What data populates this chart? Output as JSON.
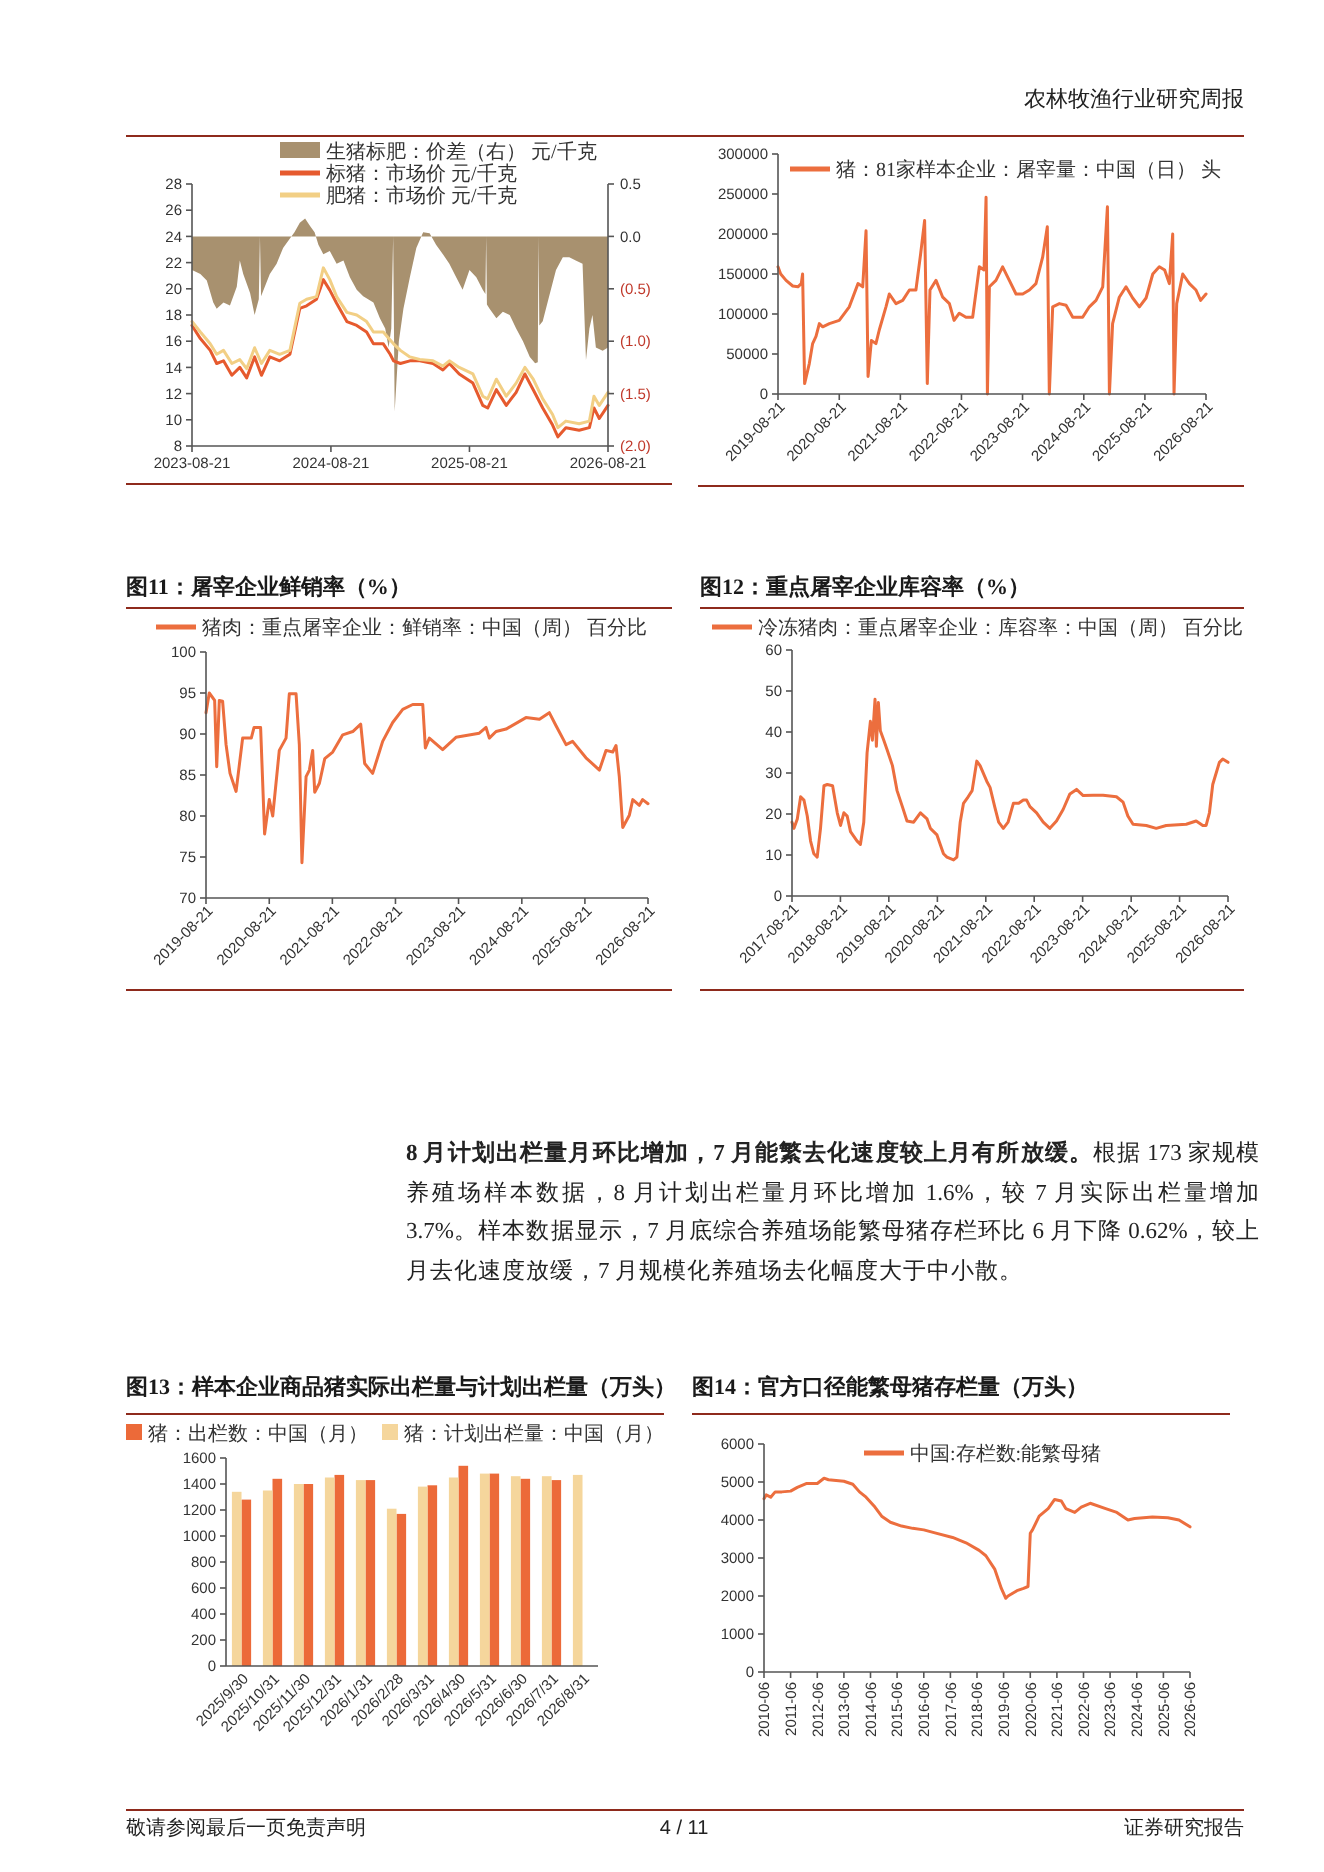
{
  "chart_data": [
    {
      "type": "other",
      "annotations": [
        "农林牧渔行业研究周报"
      ]
    },
    {
      "type": "line",
      "legend": "top",
      "xlim": [
        "2023-08-21",
        "2026-08-21"
      ],
      "xticks": [
        "2023-08-21",
        "2024-08-21",
        "2025-08-21",
        "2026-08-21"
      ],
      "ylim": [
        8,
        28
      ],
      "yticks": [
        8,
        10,
        12,
        14,
        16,
        18,
        20,
        22,
        24,
        26,
        28
      ],
      "y2lim": [
        -2,
        0.5
      ],
      "y2ticks": [
        0.5,
        {
          "value": 0,
          "label": "0.0"
        },
        {
          "value": -0.5,
          "label": "(0.5)"
        },
        {
          "value": -1,
          "label": "(1.0)"
        },
        {
          "value": -1.5,
          "label": "(1.5)"
        },
        {
          "value": -2,
          "label": "(2.0)"
        }
      ],
      "x": [
        "2023-08-21",
        "2023-09-12",
        "2023-10-08",
        "2023-10-25",
        "2023-11-12",
        "2023-12-04",
        "2023-12-25",
        "2024-01-12",
        "2024-02-02",
        "2024-02-20",
        "2024-03-13",
        "2024-04-08",
        "2024-05-05",
        "2024-05-31",
        "2024-06-18",
        "2024-07-14",
        "2024-08-01",
        "2024-08-18",
        "2024-09-05",
        "2024-10-02",
        "2024-10-28",
        "2024-11-23",
        "2024-12-11",
        "2025-01-06",
        "2025-01-24",
        "2025-02-02",
        "2025-02-20",
        "2025-03-17",
        "2025-04-12",
        "2025-05-17",
        "2025-06-12",
        "2025-06-29",
        "2025-07-25",
        "2025-08-30",
        "2025-09-25",
        "2025-10-08",
        "2025-10-31",
        "2025-11-26",
        "2025-12-22",
        "2026-01-14",
        "2026-02-05",
        "2026-03-02",
        "2026-03-28",
        "2026-04-11",
        "2026-05-02",
        "2026-06-06",
        "2026-07-03",
        "2026-07-15",
        "2026-07-29",
        "2026-08-21"
      ],
      "series": [
        {
          "name": "生猪标肥：价差（右） 元/千克",
          "type": "area",
          "axis": "y2",
          "color": "#a8916f",
          "x": [
            "2023-08-21",
            "2023-09-12",
            "2023-09-29",
            "2023-10-16",
            "2023-10-25",
            "2023-11-12",
            "2023-11-29",
            "2023-12-17",
            "2023-12-25",
            "2024-01-03",
            "2024-01-21",
            "2024-02-02",
            "2024-02-13",
            "2024-02-16",
            "2024-02-19",
            "2024-03-13",
            "2024-03-31",
            "2024-04-17",
            "2024-05-05",
            "2024-05-17",
            "2024-05-31",
            "2024-06-14",
            "2024-06-27",
            "2024-07-09",
            "2024-07-19",
            "2024-08-01",
            "2024-08-18",
            "2024-09-05",
            "2024-09-23",
            "2024-10-10",
            "2024-10-28",
            "2024-11-14",
            "2024-12-11",
            "2024-12-28",
            "2025-01-11",
            "2025-01-20",
            "2025-01-27",
            "2025-02-01",
            "2025-02-05",
            "2025-02-16",
            "2025-02-28",
            "2025-03-17",
            "2025-04-03",
            "2025-04-21",
            "2025-05-08",
            "2025-05-25",
            "2025-06-12",
            "2025-06-29",
            "2025-07-17",
            "2025-08-03",
            "2025-08-21",
            "2025-09-08",
            "2025-09-25",
            "2025-10-02",
            "2025-10-04",
            "2025-10-06",
            "2025-10-13",
            "2025-10-31",
            "2025-11-17",
            "2025-12-05",
            "2025-12-22",
            "2026-01-09",
            "2026-01-27",
            "2026-02-10",
            "2026-02-17",
            "2026-02-19",
            "2026-02-21",
            "2026-03-02",
            "2026-03-19",
            "2026-04-06",
            "2026-04-24",
            "2026-05-11",
            "2026-05-28",
            "2026-06-15",
            "2026-06-24",
            "2026-07-03",
            "2026-07-11",
            "2026-07-20",
            "2026-08-07",
            "2026-08-21"
          ],
          "values": [
            -0.32,
            -0.36,
            -0.42,
            -0.63,
            -0.69,
            -0.63,
            -0.66,
            -0.48,
            -0.23,
            -0.36,
            -0.54,
            -0.75,
            -0.6,
            0,
            -0.57,
            -0.36,
            -0.26,
            -0.11,
            -0.02,
            0.04,
            0.13,
            0.17,
            0.1,
            0.04,
            -0.08,
            -0.17,
            -0.14,
            -0.26,
            -0.23,
            -0.39,
            -0.51,
            -0.57,
            -0.63,
            -0.78,
            -0.88,
            -1.06,
            -0.88,
            0,
            -1.67,
            -1.0,
            -0.69,
            -0.39,
            -0.11,
            0.04,
            0.03,
            -0.08,
            -0.17,
            -0.26,
            -0.39,
            -0.51,
            -0.32,
            -0.39,
            -0.51,
            -0.55,
            0,
            -0.65,
            -0.69,
            -0.78,
            -0.72,
            -0.75,
            -0.88,
            -1.0,
            -1.15,
            -1.21,
            -1.2,
            0,
            -0.85,
            -0.81,
            -0.57,
            -0.32,
            -0.2,
            -0.2,
            -0.23,
            -0.26,
            -1.18,
            -0.88,
            -0.75,
            -1.06,
            -1.09,
            -1.06
          ]
        },
        {
          "name": "标猪：市场价 元/千克",
          "color": "#e65a2e",
          "values": [
            17.2,
            16.2,
            15.3,
            14.3,
            14.5,
            13.4,
            14.0,
            13.2,
            14.8,
            13.4,
            14.8,
            14.5,
            15.0,
            18.5,
            18.7,
            19.2,
            20.7,
            19.9,
            18.9,
            17.5,
            17.2,
            16.7,
            15.8,
            15.8,
            15.0,
            14.5,
            14.3,
            14.5,
            14.5,
            14.3,
            13.8,
            14.3,
            13.5,
            12.8,
            11.1,
            10.9,
            12.3,
            11.1,
            12.1,
            13.5,
            12.3,
            10.9,
            9.6,
            8.7,
            9.4,
            9.2,
            9.4,
            10.9,
            10.1,
            11.1
          ]
        },
        {
          "name": "肥猪：市场价 元/千克",
          "color": "#f2cf85",
          "values": [
            17.5,
            16.7,
            15.8,
            15.0,
            15.3,
            14.3,
            14.6,
            13.9,
            15.5,
            14.3,
            15.3,
            15.0,
            15.3,
            18.9,
            19.2,
            19.4,
            21.6,
            20.7,
            19.4,
            18.2,
            18.0,
            17.5,
            16.7,
            16.7,
            16.1,
            15.8,
            15.3,
            14.8,
            14.6,
            14.5,
            14.1,
            14.5,
            14.0,
            13.5,
            11.8,
            11.6,
            13.1,
            11.8,
            12.8,
            14.0,
            13.1,
            11.6,
            10.4,
            9.4,
            9.9,
            9.7,
            9.9,
            11.8,
            11.1,
            12.1
          ]
        }
      ]
    },
    {
      "type": "line",
      "legend": "top",
      "xlim": [
        "2019-08-21",
        "2026-08-21"
      ],
      "xticks": [
        "2019-08-21",
        "2020-08-21",
        "2021-08-21",
        "2022-08-21",
        "2023-08-21",
        "2024-08-21",
        "2025-08-21",
        "2026-08-21"
      ],
      "ylim": [
        0,
        300000
      ],
      "yticks": [
        0,
        50000,
        100000,
        150000,
        200000,
        250000,
        300000
      ],
      "series": [
        {
          "name": "猪：81家样本企业：屠宰量：中国（日） 头",
          "color": "#ec6e3e",
          "x": [
            "2019-08-21",
            "2019-09-06",
            "2019-10-08",
            "2019-11-17",
            "2019-12-18",
            "2020-01-07",
            "2020-01-15",
            "2020-01-27",
            "2020-02-24",
            "2020-03-15",
            "2020-04-04",
            "2020-04-24",
            "2020-05-14",
            "2020-06-23",
            "2020-08-21",
            "2020-10-20",
            "2020-12-11",
            "2021-01-08",
            "2021-01-28",
            "2021-02-09",
            "2021-03-01",
            "2021-03-28",
            "2021-04-17",
            "2021-05-27",
            "2021-06-16",
            "2021-07-26",
            "2021-09-04",
            "2021-10-14",
            "2021-11-22",
            "2021-12-20",
            "2022-01-13",
            "2022-01-29",
            "2022-02-14",
            "2022-03-22",
            "2022-05-01",
            "2022-06-10",
            "2022-07-08",
            "2022-08-08",
            "2022-09-17",
            "2022-10-27",
            "2022-12-06",
            "2023-01-03",
            "2023-01-15",
            "2023-01-23",
            "2023-02-04",
            "2023-03-15",
            "2023-04-24",
            "2023-06-03",
            "2023-07-13",
            "2023-08-22",
            "2023-10-01",
            "2023-11-09",
            "2023-12-19",
            "2024-01-16",
            "2024-01-28",
            "2024-02-17",
            "2024-03-28",
            "2024-05-07",
            "2024-06-16",
            "2024-08-14",
            "2024-09-23",
            "2024-11-02",
            "2024-12-12",
            "2025-01-09",
            "2025-01-21",
            "2025-02-09",
            "2025-03-21",
            "2025-04-30",
            "2025-06-09",
            "2025-07-19",
            "2025-08-28",
            "2025-10-07",
            "2025-11-15",
            "2025-12-17",
            "2026-01-14",
            "2026-02-03",
            "2026-02-11",
            "2026-02-27",
            "2026-04-04",
            "2026-05-14",
            "2026-06-22",
            "2026-07-20",
            "2026-08-21"
          ],
          "values": [
            159000,
            150000,
            142000,
            135000,
            134000,
            138000,
            150000,
            13000,
            38000,
            63000,
            72000,
            88000,
            84000,
            88000,
            92000,
            109000,
            138000,
            134000,
            204000,
            22000,
            67000,
            63000,
            80000,
            109000,
            125000,
            113000,
            117000,
            130000,
            130000,
            175000,
            217000,
            13000,
            130000,
            142000,
            121000,
            113000,
            92000,
            101000,
            96000,
            96000,
            159000,
            155000,
            246000,
            0,
            134000,
            142000,
            159000,
            142000,
            125000,
            125000,
            130000,
            138000,
            171000,
            209000,
            0,
            109000,
            113000,
            111000,
            96000,
            96000,
            109000,
            117000,
            134000,
            234000,
            0,
            88000,
            121000,
            134000,
            120000,
            109000,
            120000,
            150000,
            159000,
            155000,
            138000,
            200000,
            0,
            113000,
            150000,
            138000,
            130000,
            117000,
            125000
          ]
        }
      ]
    },
    {
      "type": "line",
      "title": "图11：屠宰企业鲜销率（%）",
      "legend": "top",
      "xlim": [
        "2019-08-21",
        "2026-08-21"
      ],
      "xticks": [
        "2019-08-21",
        "2020-08-21",
        "2021-08-21",
        "2022-08-21",
        "2023-08-21",
        "2024-08-21",
        "2025-08-21",
        "2026-08-21"
      ],
      "ylim": [
        70,
        100
      ],
      "yticks": [
        70,
        75,
        80,
        85,
        90,
        95,
        100
      ],
      "series": [
        {
          "name": "猪肉：重点屠宰企业：鲜销率：中国（周） 百分比",
          "color": "#ec6e3e",
          "x": [
            "2019-08-21",
            "2019-09-09",
            "2019-10-10",
            "2019-10-22",
            "2019-11-06",
            "2019-11-25",
            "2019-12-15",
            "2020-01-07",
            "2020-02-11",
            "2020-03-20",
            "2020-05-09",
            "2020-05-25",
            "2020-07-02",
            "2020-07-25",
            "2020-08-21",
            "2020-09-10",
            "2020-10-18",
            "2020-11-26",
            "2020-12-15",
            "2021-01-23",
            "2021-02-11",
            "2021-02-26",
            "2021-03-22",
            "2021-04-10",
            "2021-04-29",
            "2021-05-11",
            "2021-06-07",
            "2021-07-08",
            "2021-08-23",
            "2021-10-20",
            "2021-12-17",
            "2022-02-01",
            "2022-02-24",
            "2022-04-11",
            "2022-06-08",
            "2022-08-05",
            "2022-10-02",
            "2022-11-29",
            "2023-01-26",
            "2023-02-10",
            "2023-03-05",
            "2023-05-21",
            "2023-08-06",
            "2023-12-19",
            "2024-01-27",
            "2024-02-15",
            "2024-03-25",
            "2024-05-22",
            "2024-09-14",
            "2024-12-01",
            "2025-01-27",
            "2025-03-07",
            "2025-05-04",
            "2025-06-11",
            "2025-08-27",
            "2025-11-13",
            "2025-12-21",
            "2026-01-29",
            "2026-02-17",
            "2026-03-08",
            "2026-03-28",
            "2026-05-05",
            "2026-05-25",
            "2026-07-02",
            "2026-07-21",
            "2026-08-21"
          ],
          "values": [
            92.6,
            95.0,
            94.1,
            86.0,
            94.1,
            94.0,
            88.7,
            85.2,
            83.0,
            89.5,
            89.5,
            90.8,
            90.8,
            77.8,
            82.0,
            80.0,
            88.0,
            89.5,
            94.9,
            94.9,
            88.7,
            74.3,
            84.8,
            85.6,
            88.0,
            82.9,
            84.0,
            87.0,
            87.8,
            89.9,
            90.3,
            91.2,
            86.4,
            85.2,
            89.1,
            91.4,
            93.0,
            93.6,
            93.6,
            88.3,
            89.5,
            88.1,
            89.6,
            90.1,
            90.8,
            89.5,
            90.3,
            90.6,
            92.0,
            91.8,
            92.6,
            91.0,
            88.7,
            89.1,
            87.1,
            85.6,
            88.0,
            87.8,
            88.6,
            84.8,
            78.6,
            80.1,
            82.0,
            81.3,
            82.0,
            81.5
          ]
        }
      ]
    },
    {
      "type": "line",
      "title": "图12：重点屠宰企业库容率（%）",
      "legend": "top",
      "xlim": [
        "2017-08-21",
        "2026-08-21"
      ],
      "xticks": [
        "2017-08-21",
        "2018-08-21",
        "2019-08-21",
        "2020-08-21",
        "2021-08-21",
        "2022-08-21",
        "2023-08-21",
        "2024-08-21",
        "2025-08-21",
        "2026-08-21"
      ],
      "ylim": [
        0,
        60
      ],
      "yticks": [
        0,
        10,
        20,
        30,
        40,
        50,
        60
      ],
      "series": [
        {
          "name": "冷冻猪肉：重点屠宰企业：库容率：中国（周） 百分比",
          "color": "#ec6e3e",
          "x": [
            "2017-08-21",
            "2017-09-05",
            "2017-09-30",
            "2017-10-25",
            "2017-11-19",
            "2017-12-14",
            "2018-01-08",
            "2018-02-02",
            "2018-02-27",
            "2018-03-24",
            "2018-04-19",
            "2018-05-14",
            "2018-06-23",
            "2018-07-28",
            "2018-08-22",
            "2018-09-16",
            "2018-10-11",
            "2018-11-05",
            "2018-12-25",
            "2019-01-19",
            "2019-02-13",
            "2019-03-10",
            "2019-04-04",
            "2019-04-19",
            "2019-05-09",
            "2019-05-19",
            "2019-06-03",
            "2019-06-18",
            "2019-07-14",
            "2019-08-08",
            "2019-09-17",
            "2019-10-22",
            "2019-12-01",
            "2020-01-05",
            "2020-02-24",
            "2020-04-15",
            "2020-06-04",
            "2020-06-29",
            "2020-08-18",
            "2020-09-11",
            "2020-10-06",
            "2020-11-01",
            "2020-12-21",
            "2021-01-15",
            "2021-02-09",
            "2021-03-06",
            "2021-04-10",
            "2021-05-10",
            "2021-06-14",
            "2021-07-09",
            "2021-08-28",
            "2021-09-22",
            "2021-10-27",
            "2021-11-26",
            "2021-12-31",
            "2022-02-05",
            "2022-03-17",
            "2022-04-26",
            "2022-05-31",
            "2022-06-25",
            "2022-07-20",
            "2022-09-08",
            "2022-10-28",
            "2022-12-17",
            "2023-02-05",
            "2023-03-27",
            "2023-05-17",
            "2023-07-06",
            "2023-08-25",
            "2023-11-08",
            "2024-01-22",
            "2024-05-02",
            "2024-06-21",
            "2024-07-27",
            "2024-09-04",
            "2024-12-13",
            "2025-02-26",
            "2025-05-12",
            "2025-10-10",
            "2025-12-24",
            "2026-02-12",
            "2026-03-09",
            "2026-04-03",
            "2026-04-28",
            "2026-06-17",
            "2026-07-12",
            "2026-08-21"
          ],
          "values": [
            18.0,
            16.5,
            18.8,
            24.2,
            23.4,
            19.5,
            13.4,
            10.3,
            9.5,
            16.5,
            26.9,
            27.2,
            26.9,
            20.3,
            17.2,
            20.3,
            19.5,
            15.7,
            13.4,
            12.6,
            18.0,
            34.9,
            42.6,
            38.0,
            48.0,
            36.5,
            47.2,
            40.3,
            38.0,
            35.7,
            31.8,
            25.7,
            21.8,
            18.3,
            18.0,
            20.3,
            18.8,
            16.5,
            14.9,
            12.6,
            10.3,
            9.5,
            8.8,
            9.5,
            18.0,
            22.6,
            24.2,
            25.7,
            32.9,
            31.8,
            28.0,
            26.5,
            21.8,
            18.0,
            16.5,
            18.0,
            22.6,
            22.6,
            23.4,
            23.4,
            21.8,
            20.3,
            18.0,
            16.5,
            18.3,
            21.1,
            24.9,
            26.0,
            24.5,
            24.6,
            24.6,
            24.2,
            22.9,
            19.5,
            17.5,
            17.2,
            16.5,
            17.2,
            17.5,
            18.3,
            17.2,
            17.2,
            20.3,
            27.2,
            32.6,
            33.4,
            32.6
          ]
        }
      ]
    },
    {
      "type": "other",
      "annotations": [
        "**8 月计划出栏量月环比增加，7 月能繁去化速度较上月有所放缓。**根据 173 家规模养殖场样本数据，8 月计划出栏量月环比增加 1.6%，较 7 月实际出栏量增加 3.7%。样本数据显示，7 月底综合养殖场能繁母猪存栏环比 6 月下降 0.62%，较上月去化速度放缓，7 月规模化养殖场去化幅度大于中小散。"
      ]
    },
    {
      "type": "bar",
      "title": "图13：样本企业商品猪实际出栏量与计划出栏量（万头）",
      "legend": "top",
      "categories": [
        "2025/9/30",
        "2025/10/31",
        "2025/11/30",
        "2025/12/31",
        "2026/1/31",
        "2026/2/28",
        "2026/3/31",
        "2026/4/30",
        "2026/5/31",
        "2026/6/30",
        "2026/7/31",
        "2026/8/31"
      ],
      "ylim": [
        0,
        1600
      ],
      "yticks": [
        0,
        200,
        400,
        600,
        800,
        1000,
        1200,
        1400,
        1600
      ],
      "series": [
        {
          "name": "猪：出栏数：中国（月）",
          "color": "#ec6a39",
          "values": [
            1280,
            1440,
            1400,
            1470,
            1430,
            1170,
            1390,
            1540,
            1480,
            1440,
            1430,
            null
          ]
        },
        {
          "name": "猪：计划出栏量：中国（月）",
          "color": "#f5d69c",
          "values": [
            1340,
            1350,
            1400,
            1450,
            1430,
            1210,
            1380,
            1450,
            1480,
            1460,
            1460,
            1470
          ]
        }
      ]
    },
    {
      "type": "line",
      "title": "图14：官方口径能繁母猪存栏量（万头）",
      "legend": "top",
      "xlim": [
        "2010-06",
        "2026-06"
      ],
      "xticks": [
        "2010-06",
        "2011-06",
        "2012-06",
        "2013-06",
        "2014-06",
        "2015-06",
        "2016-06",
        "2017-06",
        "2018-06",
        "2019-06",
        "2020-06",
        "2021-06",
        "2022-06",
        "2023-06",
        "2024-06",
        "2025-06",
        "2026-06"
      ],
      "ylim": [
        0,
        6000
      ],
      "yticks": [
        0,
        1000,
        2000,
        3000,
        4000,
        5000,
        6000
      ],
      "series": [
        {
          "name": "中国:存栏数:能繁母猪",
          "color": "#ec6e3e",
          "x": [
            "2010-06",
            "2010-07",
            "2010-09",
            "2010-11",
            "2011-02",
            "2011-06",
            "2011-09",
            "2012-01",
            "2012-06",
            "2012-09",
            "2012-11",
            "2013-06",
            "2013-10",
            "2014-01",
            "2014-04",
            "2014-08",
            "2014-11",
            "2015-03",
            "2015-08",
            "2016-01",
            "2016-06",
            "2016-11",
            "2017-07",
            "2018-01",
            "2018-07",
            "2018-10",
            "2019-02",
            "2019-05",
            "2019-07",
            "2019-08",
            "2019-12",
            "2020-03",
            "2020-05",
            "2020-06",
            "2020-07",
            "2020-10",
            "2021-02",
            "2021-05",
            "2021-08",
            "2021-10",
            "2022-02",
            "2022-05",
            "2022-09",
            "2023-04",
            "2023-09",
            "2024-02",
            "2024-05",
            "2025-01",
            "2025-08",
            "2026-01",
            "2026-06"
          ],
          "values": [
            4560,
            4660,
            4600,
            4740,
            4740,
            4760,
            4860,
            4960,
            4960,
            5100,
            5060,
            5020,
            4940,
            4740,
            4600,
            4340,
            4100,
            3940,
            3840,
            3780,
            3740,
            3660,
            3540,
            3400,
            3200,
            3060,
            2700,
            2200,
            1940,
            2000,
            2140,
            2200,
            2250,
            3650,
            3740,
            4100,
            4300,
            4540,
            4500,
            4300,
            4200,
            4340,
            4440,
            4300,
            4200,
            4000,
            4040,
            4080,
            4060,
            4000,
            3820
          ]
        }
      ]
    },
    {
      "type": "other",
      "annotations": [
        "敬请参阅最后一页免责声明",
        "4 / 11",
        "证券研究报告"
      ]
    }
  ]
}
